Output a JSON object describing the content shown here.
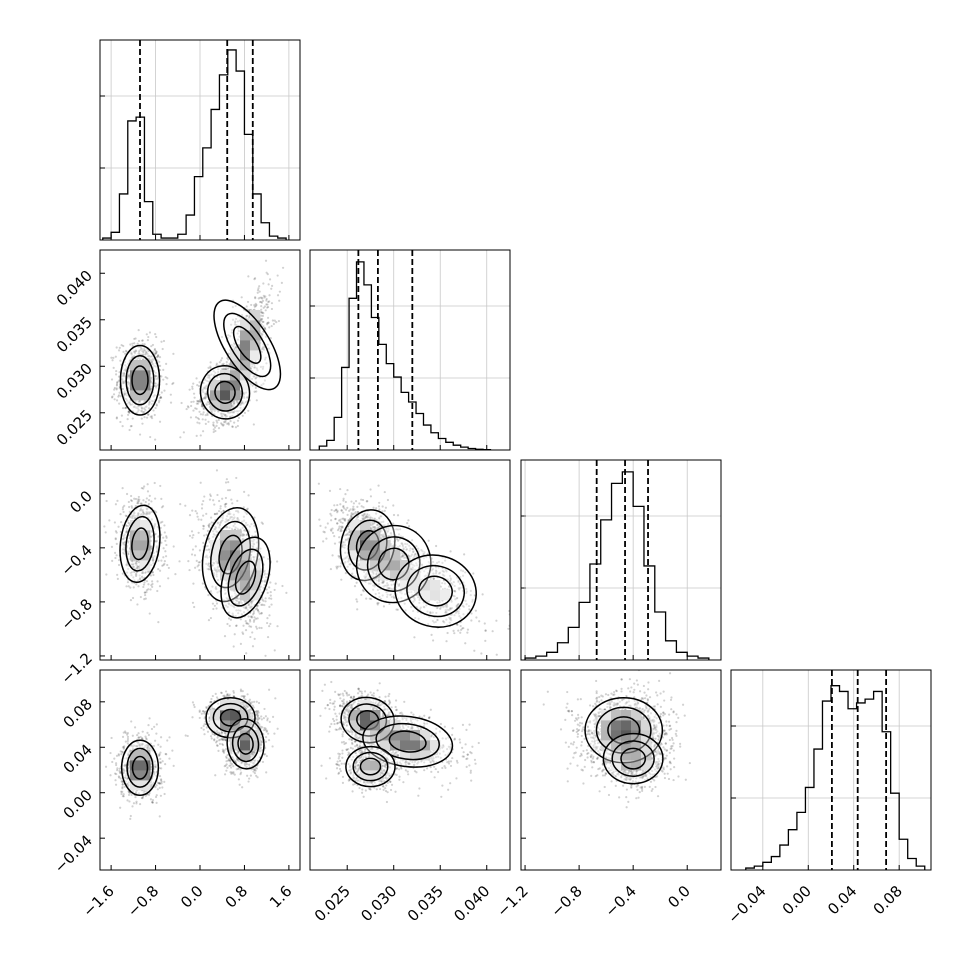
{
  "chart_data": {
    "type": "corner",
    "title": "",
    "grid": true,
    "parameters": [
      {
        "range": [
          -1.8,
          1.8
        ],
        "ticks": [
          -1.6,
          -0.8,
          0.0,
          0.8,
          1.6
        ],
        "tick_labels": [
          "−1.6",
          "−0.8",
          "0.0",
          "0.8",
          "1.6"
        ]
      },
      {
        "range": [
          0.021,
          0.0425
        ],
        "ticks": [
          0.025,
          0.03,
          0.035,
          0.04
        ],
        "tick_labels": [
          "0.025",
          "0.030",
          "0.035",
          "0.040"
        ]
      },
      {
        "range": [
          -1.23,
          0.25
        ],
        "ticks": [
          -1.2,
          -0.8,
          -0.4,
          0.0
        ],
        "tick_labels": [
          "−1.2",
          "−0.8",
          "−0.4",
          "0.0"
        ]
      },
      {
        "range": [
          -0.068,
          0.108
        ],
        "ticks": [
          -0.04,
          0.0,
          0.04,
          0.08
        ],
        "tick_labels": [
          "−0.04",
          "0.00",
          "0.04",
          "0.08"
        ]
      }
    ],
    "histograms": [
      {
        "param": 0,
        "ymax": 1.0,
        "edges": [
          -1.75,
          -1.6,
          -1.45,
          -1.3,
          -1.15,
          -1.0,
          -0.85,
          -0.7,
          -0.55,
          -0.4,
          -0.25,
          -0.1,
          0.05,
          0.2,
          0.35,
          0.5,
          0.65,
          0.8,
          0.95,
          1.1,
          1.25,
          1.4,
          1.55
        ],
        "values": [
          0.01,
          0.04,
          0.24,
          0.62,
          0.64,
          0.2,
          0.03,
          0.01,
          0.01,
          0.03,
          0.13,
          0.33,
          0.48,
          0.68,
          0.86,
          0.99,
          0.88,
          0.55,
          0.24,
          0.09,
          0.02,
          0.01
        ],
        "quantiles": [
          -1.08,
          0.49,
          0.95
        ]
      },
      {
        "param": 1,
        "ymax": 1.0,
        "edges": [
          0.022,
          0.0228,
          0.0236,
          0.0244,
          0.0252,
          0.026,
          0.0268,
          0.0276,
          0.0284,
          0.0292,
          0.03,
          0.0308,
          0.0316,
          0.0324,
          0.0332,
          0.034,
          0.0348,
          0.0356,
          0.0364,
          0.0372,
          0.038,
          0.0388,
          0.0396,
          0.0404
        ],
        "values": [
          0.02,
          0.05,
          0.17,
          0.43,
          0.79,
          0.98,
          0.86,
          0.69,
          0.55,
          0.45,
          0.38,
          0.3,
          0.25,
          0.19,
          0.13,
          0.09,
          0.06,
          0.04,
          0.025,
          0.015,
          0.008,
          0.004,
          0.002
        ],
        "quantiles": [
          0.0262,
          0.0283,
          0.032
        ]
      },
      {
        "param": 2,
        "ymax": 1.0,
        "edges": [
          -1.2,
          -1.12,
          -1.04,
          -0.96,
          -0.88,
          -0.8,
          -0.72,
          -0.64,
          -0.56,
          -0.48,
          -0.4,
          -0.32,
          -0.24,
          -0.16,
          -0.08,
          0.0,
          0.08,
          0.16
        ],
        "values": [
          0.01,
          0.02,
          0.04,
          0.09,
          0.17,
          0.3,
          0.5,
          0.73,
          0.92,
          0.98,
          0.8,
          0.49,
          0.25,
          0.1,
          0.04,
          0.02,
          0.01
        ],
        "quantiles": [
          -0.67,
          -0.46,
          -0.29
        ]
      },
      {
        "param": 3,
        "ymax": 1.0,
        "edges": [
          -0.055,
          -0.0475,
          -0.04,
          -0.0325,
          -0.025,
          -0.0175,
          -0.01,
          -0.0025,
          0.005,
          0.0125,
          0.02,
          0.0275,
          0.035,
          0.0425,
          0.05,
          0.0575,
          0.065,
          0.0725,
          0.08,
          0.0875,
          0.095,
          0.1025
        ],
        "values": [
          0.01,
          0.02,
          0.04,
          0.07,
          0.13,
          0.21,
          0.3,
          0.43,
          0.63,
          0.88,
          0.96,
          0.93,
          0.84,
          0.87,
          0.89,
          0.93,
          0.72,
          0.4,
          0.16,
          0.06,
          0.02
        ],
        "quantiles": [
          0.0208,
          0.0435,
          0.0685
        ]
      }
    ],
    "scatter_panels": [
      {
        "x_param": 0,
        "y_param": 1,
        "components": [
          {
            "center": [
              -1.08,
              0.0285
            ],
            "sd": [
              0.16,
              0.0017
            ],
            "rho": 0.0,
            "weight": 0.35
          },
          {
            "center": [
              0.45,
              0.0272
            ],
            "sd": [
              0.2,
              0.0013
            ],
            "rho": 0.3,
            "weight": 0.35
          },
          {
            "center": [
              0.85,
              0.0323
            ],
            "sd": [
              0.18,
              0.0025
            ],
            "rho": 0.6,
            "weight": 0.3
          }
        ]
      },
      {
        "x_param": 0,
        "y_param": 2,
        "components": [
          {
            "center": [
              -1.08,
              -0.37
            ],
            "sd": [
              0.16,
              0.13
            ],
            "rho": -0.1,
            "weight": 0.35
          },
          {
            "center": [
              0.55,
              -0.45
            ],
            "sd": [
              0.22,
              0.16
            ],
            "rho": -0.2,
            "weight": 0.35
          },
          {
            "center": [
              0.82,
              -0.62
            ],
            "sd": [
              0.18,
              0.14
            ],
            "rho": -0.3,
            "weight": 0.3
          }
        ]
      },
      {
        "x_param": 1,
        "y_param": 2,
        "components": [
          {
            "center": [
              0.0272,
              -0.38
            ],
            "sd": [
              0.0013,
              0.12
            ],
            "rho": -0.3,
            "weight": 0.5
          },
          {
            "center": [
              0.03,
              -0.52
            ],
            "sd": [
              0.0018,
              0.13
            ],
            "rho": -0.6,
            "weight": 0.3
          },
          {
            "center": [
              0.0345,
              -0.72
            ],
            "sd": [
              0.002,
              0.12
            ],
            "rho": -0.5,
            "weight": 0.2
          }
        ]
      },
      {
        "x_param": 0,
        "y_param": 3,
        "components": [
          {
            "center": [
              -1.08,
              0.022
            ],
            "sd": [
              0.15,
              0.011
            ],
            "rho": 0.0,
            "weight": 0.35
          },
          {
            "center": [
              0.55,
              0.066
            ],
            "sd": [
              0.2,
              0.008
            ],
            "rho": 0.0,
            "weight": 0.35
          },
          {
            "center": [
              0.82,
              0.043
            ],
            "sd": [
              0.15,
              0.01
            ],
            "rho": 0.1,
            "weight": 0.3
          }
        ]
      },
      {
        "x_param": 1,
        "y_param": 3,
        "components": [
          {
            "center": [
              0.0272,
              0.064
            ],
            "sd": [
              0.0013,
              0.009
            ],
            "rho": -0.3,
            "weight": 0.4
          },
          {
            "center": [
              0.0315,
              0.045
            ],
            "sd": [
              0.0022,
              0.01
            ],
            "rho": -0.4,
            "weight": 0.35
          },
          {
            "center": [
              0.0275,
              0.023
            ],
            "sd": [
              0.0012,
              0.008
            ],
            "rho": 0.0,
            "weight": 0.25
          }
        ]
      },
      {
        "x_param": 2,
        "y_param": 3,
        "components": [
          {
            "center": [
              -0.47,
              0.055
            ],
            "sd": [
              0.13,
              0.013
            ],
            "rho": 0.0,
            "weight": 0.6
          },
          {
            "center": [
              -0.4,
              0.03
            ],
            "sd": [
              0.1,
              0.01
            ],
            "rho": 0.0,
            "weight": 0.4
          }
        ]
      }
    ]
  }
}
